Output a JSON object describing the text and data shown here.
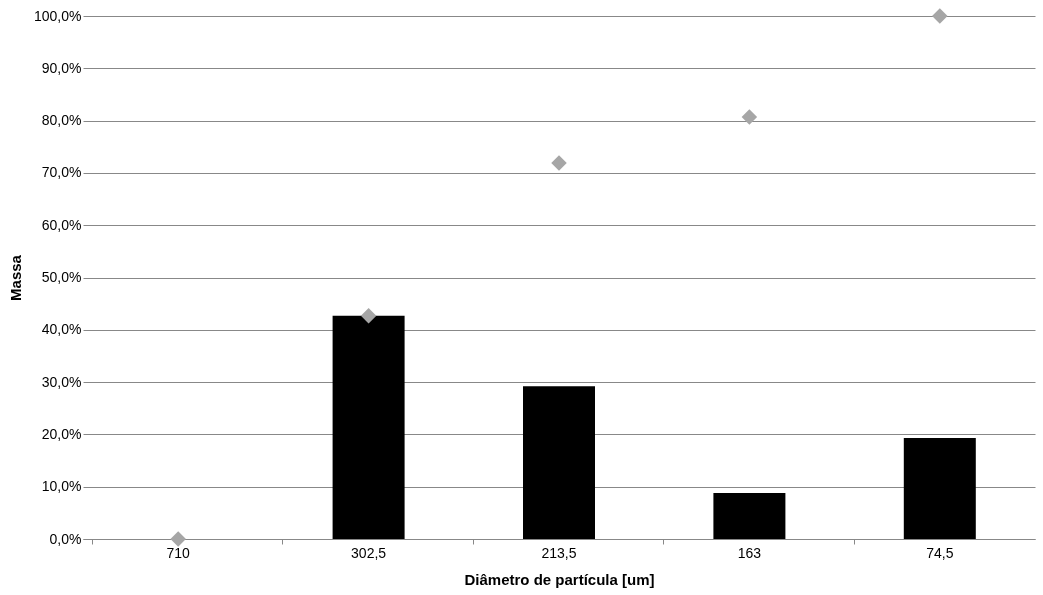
{
  "chart_data": {
    "type": "bar",
    "xlabel": "Diâmetro de partícula [um]",
    "ylabel": "Massa",
    "categories": [
      "710",
      "302,5",
      "213,5",
      "163",
      "74,5"
    ],
    "series": [
      {
        "color": "#000000",
        "values": [
          0,
          42.7,
          29.2,
          8.8,
          19.3
        ]
      },
      {
        "type": "scatter",
        "color": "#a6a6a6",
        "marker": "diamond",
        "values": [
          0,
          42.7,
          71.9,
          80.7,
          100
        ]
      }
    ],
    "ylim": [
      0,
      100
    ],
    "yticks": [
      {
        "value": 0,
        "label": "0,0%"
      },
      {
        "value": 10,
        "label": "10,0%"
      },
      {
        "value": 20,
        "label": "20,0%"
      },
      {
        "value": 30,
        "label": "30,0%"
      },
      {
        "value": 40,
        "label": "40,0%"
      },
      {
        "value": 50,
        "label": "50,0%"
      },
      {
        "value": 60,
        "label": "60,0%"
      },
      {
        "value": 70,
        "label": "70,0%"
      },
      {
        "value": 80,
        "label": "80,0%"
      },
      {
        "value": 90,
        "label": "90,0%"
      },
      {
        "value": 100,
        "label": "100,0%"
      }
    ],
    "grid": "y",
    "legend": false
  }
}
